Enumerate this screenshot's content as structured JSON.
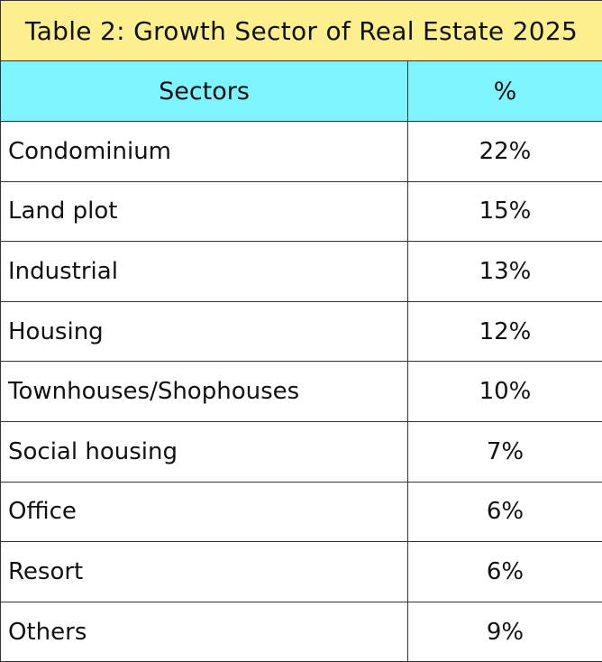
{
  "table": {
    "title": "Table 2: Growth Sector of Real Estate 2025",
    "columns": [
      "Sectors",
      "%"
    ],
    "rows": [
      {
        "sector": "Condominium",
        "percent": "22%"
      },
      {
        "sector": "Land plot",
        "percent": "15%"
      },
      {
        "sector": "Industrial",
        "percent": "13%"
      },
      {
        "sector": "Housing",
        "percent": "12%"
      },
      {
        "sector": "Townhouses/Shophouses",
        "percent": "10%"
      },
      {
        "sector": "Social housing",
        "percent": "7%"
      },
      {
        "sector": "Office",
        "percent": "6%"
      },
      {
        "sector": "Resort",
        "percent": "6%"
      },
      {
        "sector": "Others",
        "percent": "9%"
      }
    ]
  },
  "colors": {
    "title_background": "#fdef8e",
    "header_background": "#7df4fe",
    "border": "#333333"
  }
}
